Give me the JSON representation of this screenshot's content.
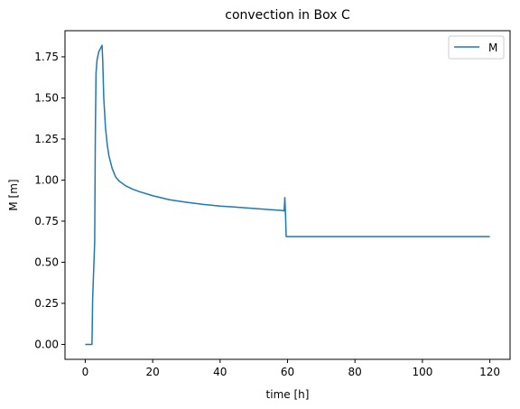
{
  "chart_data": {
    "type": "line",
    "title": "convection in Box C",
    "xlabel": "time [h]",
    "ylabel": "M [m]",
    "xlim": [
      -6,
      126
    ],
    "ylim": [
      -0.0909,
      1.909
    ],
    "xticks": [
      0,
      20,
      40,
      60,
      80,
      100,
      120
    ],
    "xtick_labels": [
      "0",
      "20",
      "40",
      "60",
      "80",
      "100",
      "120"
    ],
    "yticks": [
      0.0,
      0.25,
      0.5,
      0.75,
      1.0,
      1.25,
      1.5,
      1.75
    ],
    "ytick_labels": [
      "0.00",
      "0.25",
      "0.50",
      "0.75",
      "1.00",
      "1.25",
      "1.50",
      "1.75"
    ],
    "grid": false,
    "legend_position": "top-right",
    "series": [
      {
        "name": "M",
        "color": "#1f77b4",
        "x": [
          0,
          1,
          2,
          2.2,
          2.5,
          2.8,
          3.0,
          3.2,
          3.5,
          4.0,
          4.5,
          5.0,
          5.2,
          5.5,
          6,
          6.5,
          7,
          8,
          9,
          10,
          12,
          14,
          16,
          20,
          25,
          30,
          35,
          40,
          45,
          50,
          55,
          58.5,
          59.0,
          59.2,
          59.4,
          59.6,
          60,
          80,
          100,
          120
        ],
        "y": [
          0,
          0,
          0,
          0.28,
          0.45,
          0.62,
          1.28,
          1.65,
          1.73,
          1.78,
          1.8,
          1.82,
          1.72,
          1.5,
          1.32,
          1.22,
          1.15,
          1.07,
          1.02,
          0.995,
          0.965,
          0.945,
          0.93,
          0.905,
          0.88,
          0.865,
          0.852,
          0.842,
          0.835,
          0.827,
          0.82,
          0.815,
          0.812,
          0.893,
          0.79,
          0.656,
          0.656,
          0.656,
          0.656,
          0.656
        ]
      }
    ]
  }
}
